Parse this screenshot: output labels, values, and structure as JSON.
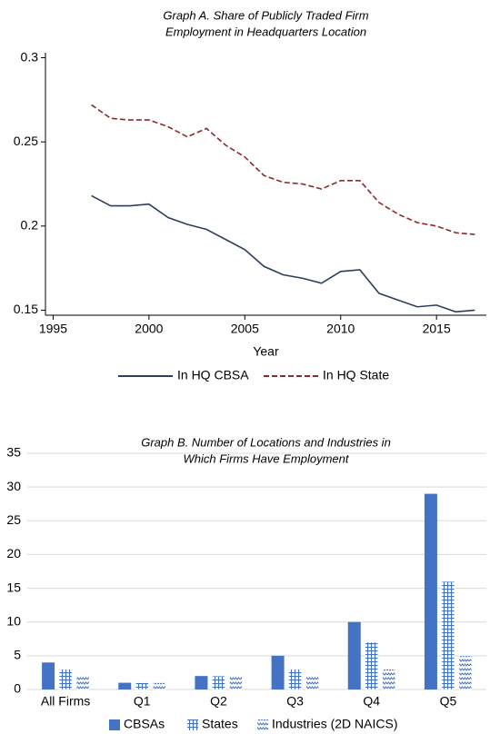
{
  "chart_data": [
    {
      "type": "line",
      "title": [
        "Graph A. Share of Publicly Traded Firm",
        "Employment in Headquarters Location"
      ],
      "x_label": "Year",
      "x": [
        1997,
        1998,
        1999,
        2000,
        2001,
        2002,
        2003,
        2004,
        2005,
        2006,
        2007,
        2008,
        2009,
        2010,
        2011,
        2012,
        2013,
        2014,
        2015,
        2016,
        2017
      ],
      "series": [
        {
          "name": "In HQ CBSA",
          "color": "#2b3f5c",
          "dash": false,
          "values": [
            0.218,
            0.212,
            0.212,
            0.213,
            0.205,
            0.201,
            0.198,
            0.192,
            0.186,
            0.176,
            0.171,
            0.169,
            0.166,
            0.173,
            0.174,
            0.16,
            0.156,
            0.152,
            0.153,
            0.149,
            0.15
          ]
        },
        {
          "name": "In HQ State",
          "color": "#8b2a2e",
          "dash": true,
          "values": [
            0.272,
            0.264,
            0.263,
            0.263,
            0.259,
            0.253,
            0.258,
            0.248,
            0.241,
            0.23,
            0.226,
            0.225,
            0.222,
            0.227,
            0.227,
            0.214,
            0.207,
            0.202,
            0.2,
            0.196,
            0.195
          ]
        }
      ],
      "xlim": [
        1994.6,
        2017.6
      ],
      "xticks": [
        1995,
        2000,
        2005,
        2010,
        2015
      ],
      "ylim": [
        0.147,
        0.303
      ],
      "yticks": [
        0.15,
        0.2,
        0.25,
        0.3
      ],
      "grid": false
    },
    {
      "type": "bar",
      "title": [
        "Graph B. Number of Locations and Industries in",
        "Which Firms Have Employment"
      ],
      "categories": [
        "All Firms",
        "Q1",
        "Q2",
        "Q3",
        "Q4",
        "Q5"
      ],
      "series": [
        {
          "name": "CBSAs",
          "color": "#4472c4",
          "pattern": "solid",
          "values": [
            4,
            1,
            2,
            5,
            10,
            29
          ]
        },
        {
          "name": "States",
          "color": "#4472c4",
          "pattern": "grid",
          "values": [
            3,
            1,
            2,
            3,
            7,
            16
          ]
        },
        {
          "name": "Industries (2D NAICS)",
          "color": "#4472c4",
          "pattern": "wave",
          "values": [
            2,
            1,
            2,
            2,
            3,
            5
          ]
        }
      ],
      "ylim": [
        0,
        35
      ],
      "yticks": [
        0,
        5,
        10,
        15,
        20,
        25,
        30,
        35
      ],
      "grid": true
    }
  ]
}
